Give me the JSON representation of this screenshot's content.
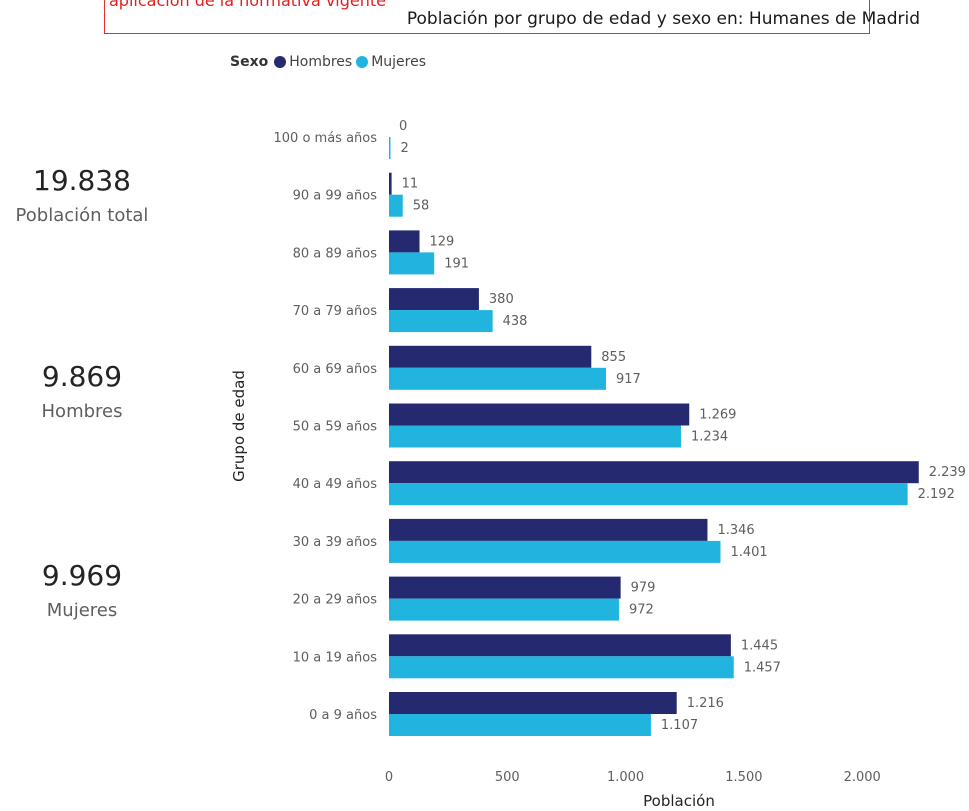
{
  "notice": {
    "text": "aplicación de la normativa vigente"
  },
  "kpis": [
    {
      "value": "19.838",
      "label": "Población total"
    },
    {
      "value": "9.869",
      "label": "Hombres"
    },
    {
      "value": "9.969",
      "label": "Mujeres"
    }
  ],
  "legend": {
    "title": "Sexo"
  },
  "colors": {
    "hombres": "#252a70",
    "mujeres": "#20b4df"
  },
  "chart_data": {
    "type": "bar",
    "orientation": "horizontal",
    "title": "Población por grupo de edad y sexo en: Humanes de Madrid",
    "xlabel": "Población",
    "ylabel": "Grupo de edad",
    "xlim": [
      0,
      2239
    ],
    "xticks": [
      0,
      500,
      1000,
      1500,
      2000
    ],
    "xtick_labels": [
      "0",
      "500",
      "1.000",
      "1.500",
      "2.000"
    ],
    "categories": [
      "100 o más años",
      "90 a 99 años",
      "80 a 89 años",
      "70 a 79 años",
      "60 a 69 años",
      "50 a 59 años",
      "40 a 49 años",
      "30 a 39 años",
      "20 a 29 años",
      "10 a 19 años",
      "0 a 9 años"
    ],
    "series": [
      {
        "name": "Hombres",
        "values": [
          0,
          11,
          129,
          380,
          855,
          1269,
          2239,
          1346,
          979,
          1445,
          1216
        ],
        "labels": [
          "0",
          "11",
          "129",
          "380",
          "855",
          "1.269",
          "2.239",
          "1.346",
          "979",
          "1.445",
          "1.216"
        ]
      },
      {
        "name": "Mujeres",
        "values": [
          2,
          58,
          191,
          438,
          917,
          1234,
          2192,
          1401,
          972,
          1457,
          1107
        ],
        "labels": [
          "2",
          "58",
          "191",
          "438",
          "917",
          "1.234",
          "2.192",
          "1.401",
          "972",
          "1.457",
          "1.107"
        ]
      }
    ],
    "legend_position": "top-left",
    "grid": false
  }
}
